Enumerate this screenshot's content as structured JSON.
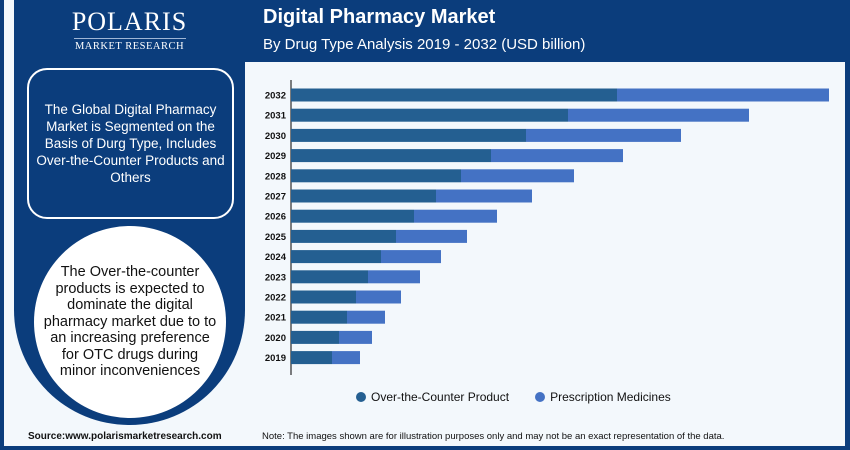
{
  "logo": {
    "name": "POLARIS",
    "tagline": "MARKET RESEARCH"
  },
  "header": {
    "title": "Digital Pharmacy Market",
    "subtitle": "By Drug Type Analysis 2019 - 2032 (USD billion)"
  },
  "left_panel": {
    "box_text": "The Global Digital Pharmacy Market is Segmented on the Basis of Durg Type, Includes Over-the-Counter Products and Others",
    "circle_text": "The Over-the-counter products is expected to dominate the digital pharmacy market due to to an increasing preference for OTC drugs during minor inconveniences"
  },
  "footer": {
    "source": "Source:www.polarismarketresearch.com",
    "note": "Note: The images shown are for illustration purposes only and may not be an exact representation of the data."
  },
  "colors": {
    "brand": "#0b3d7c",
    "otc": "#245f91",
    "prescription": "#4472c4"
  },
  "chart_data": {
    "type": "bar",
    "orientation": "horizontal",
    "stacked": true,
    "title": "Digital Pharmacy Market",
    "subtitle": "By Drug Type Analysis 2019 - 2032 (USD billion)",
    "categories": [
      "2032",
      "2031",
      "2030",
      "2029",
      "2028",
      "2027",
      "2026",
      "2025",
      "2024",
      "2023",
      "2022",
      "2021",
      "2020",
      "2019"
    ],
    "series": [
      {
        "name": "Over-the-Counter Product",
        "color": "#245f91",
        "values": [
          32.6,
          27.7,
          23.5,
          20.0,
          17.0,
          14.5,
          12.3,
          10.5,
          9.0,
          7.7,
          6.5,
          5.6,
          4.8,
          4.1
        ]
      },
      {
        "name": "Prescription Medicines",
        "color": "#4472c4",
        "values": [
          21.2,
          18.1,
          15.5,
          13.2,
          11.3,
          9.6,
          8.3,
          7.1,
          6.0,
          5.2,
          4.5,
          3.8,
          3.3,
          2.8
        ]
      }
    ],
    "xaxis_labels_shown": false,
    "grid": false,
    "legend": "bottom"
  }
}
